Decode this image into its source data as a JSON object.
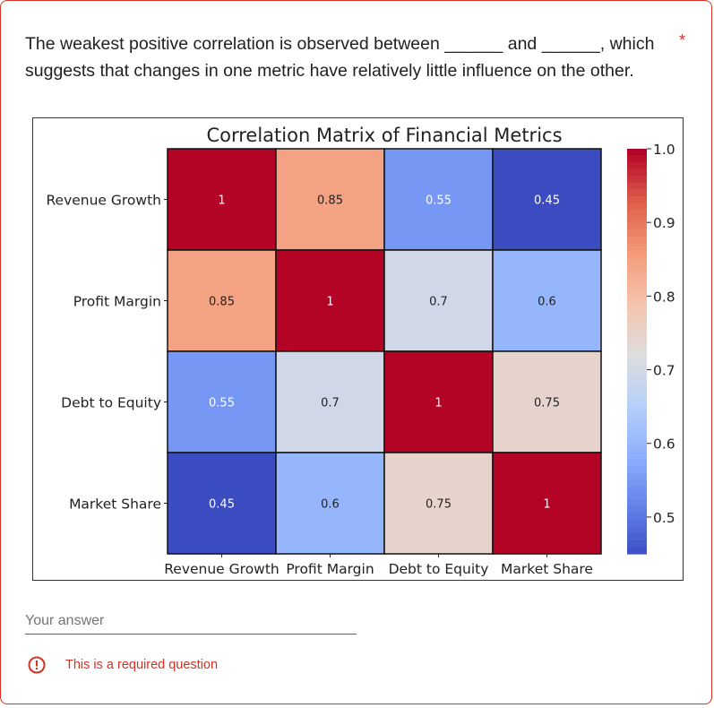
{
  "question": {
    "text": "The weakest positive correlation is observed between ______ and ______, which suggests that changes in one metric have relatively little influence on the other.",
    "required_marker": "*"
  },
  "answer": {
    "placeholder": "Your answer",
    "value": ""
  },
  "validation": {
    "error_text": "This is a required question",
    "error_icon": "alert-circle-icon",
    "error_color": "#d93025"
  },
  "chart_data": {
    "type": "heatmap",
    "title": "Correlation Matrix of Financial Metrics",
    "rows": [
      "Revenue Growth",
      "Profit Margin",
      "Debt to Equity",
      "Market Share"
    ],
    "columns": [
      "Revenue Growth",
      "Profit Margin",
      "Debt to Equity",
      "Market Share"
    ],
    "values": [
      [
        1,
        0.85,
        0.55,
        0.45
      ],
      [
        0.85,
        1,
        0.7,
        0.6
      ],
      [
        0.55,
        0.7,
        1,
        0.75
      ],
      [
        0.45,
        0.6,
        0.75,
        1
      ]
    ],
    "value_labels": [
      [
        "1",
        "0.85",
        "0.55",
        "0.45"
      ],
      [
        "0.85",
        "1",
        "0.7",
        "0.6"
      ],
      [
        "0.55",
        "0.7",
        "1",
        "0.75"
      ],
      [
        "0.45",
        "0.6",
        "0.75",
        "1"
      ]
    ],
    "colormap": "coolwarm",
    "vmin": 0.45,
    "vmax": 1.0,
    "colorbar_ticks": [
      "1.0",
      "0.9",
      "0.8",
      "0.7",
      "0.6",
      "0.5"
    ],
    "colorbar_tick_values": [
      1.0,
      0.9,
      0.8,
      0.7,
      0.6,
      0.5
    ],
    "colors": {
      "low": "#3b4cc0",
      "mid": "#dddddd",
      "high": "#b40426"
    }
  }
}
